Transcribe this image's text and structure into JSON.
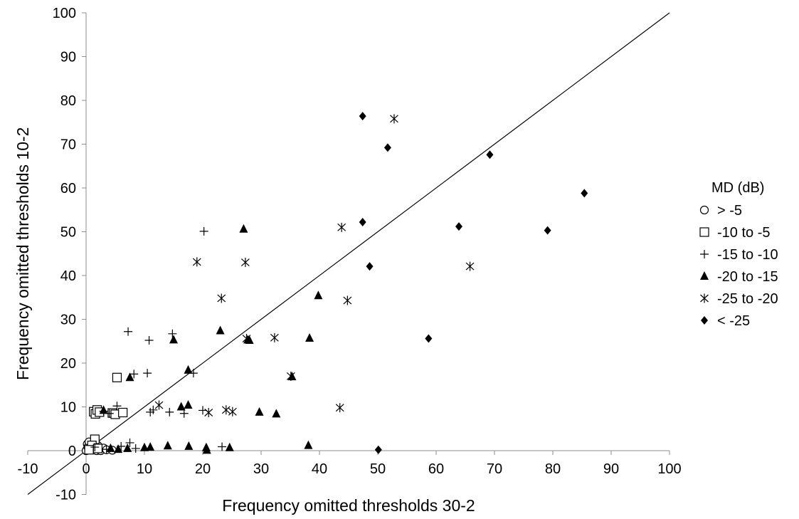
{
  "chart_data": {
    "type": "scatter",
    "title": "",
    "xlabel": "Frequency omitted thresholds 30-2",
    "ylabel": "Frequency omitted thresholds 10-2",
    "xlim": [
      -10,
      100
    ],
    "ylim": [
      -10,
      100
    ],
    "xticks": [
      "-10",
      "0",
      "10",
      "20",
      "30",
      "40",
      "50",
      "60",
      "70",
      "80",
      "90",
      "100"
    ],
    "yticks": [
      "-10",
      "0",
      "10",
      "20",
      "30",
      "40",
      "50",
      "60",
      "70",
      "80",
      "90",
      "100"
    ],
    "grid": false,
    "legend_position": "right",
    "legend_title": "MD (dB)",
    "reference_line": {
      "name": "y = x",
      "from": [
        -10,
        -10
      ],
      "to": [
        100,
        100
      ]
    },
    "series": [
      {
        "name": "> -5",
        "marker": "circle-open",
        "color": "#000000",
        "points": [
          [
            0,
            0
          ],
          [
            0.2,
            1.5
          ],
          [
            0.3,
            0.8
          ],
          [
            0.5,
            2
          ],
          [
            0.6,
            0.3
          ],
          [
            0.8,
            1
          ],
          [
            1,
            0.2
          ],
          [
            1.2,
            1.6
          ],
          [
            1.5,
            0.5
          ],
          [
            1.8,
            0
          ],
          [
            2,
            1.2
          ],
          [
            2.2,
            0.4
          ],
          [
            2.5,
            0
          ],
          [
            3,
            0.6
          ],
          [
            3.5,
            0.2
          ],
          [
            4.5,
            0.1
          ]
        ]
      },
      {
        "name": "-10 to -5",
        "marker": "square-open",
        "color": "#000000",
        "points": [
          [
            1.3,
            8.9
          ],
          [
            1.6,
            8.4
          ],
          [
            1.9,
            9.3
          ],
          [
            2.3,
            8.8
          ],
          [
            4.5,
            8.6
          ],
          [
            5.0,
            8.3
          ],
          [
            6.3,
            8.7
          ],
          [
            5.3,
            16.7
          ],
          [
            1.5,
            2.6
          ],
          [
            1,
            1.2
          ],
          [
            2,
            0.5
          ],
          [
            0.5,
            0.2
          ]
        ]
      },
      {
        "name": "-15 to -10",
        "marker": "plus",
        "color": "#000000",
        "points": [
          [
            20.2,
            50.1
          ],
          [
            7.2,
            27.2
          ],
          [
            14.8,
            26.7
          ],
          [
            10.8,
            25.2
          ],
          [
            8.2,
            17.5
          ],
          [
            10.5,
            17.7
          ],
          [
            18.4,
            17.7
          ],
          [
            5.3,
            10.2
          ],
          [
            11,
            8.8
          ],
          [
            11.5,
            9.3
          ],
          [
            14.3,
            8.8
          ],
          [
            16.8,
            8.5
          ],
          [
            20,
            9.2
          ],
          [
            7.5,
            1.8
          ],
          [
            6,
            1
          ],
          [
            8.5,
            0.5
          ],
          [
            23.3,
            0.9
          ],
          [
            3,
            9
          ],
          [
            4,
            8.5
          ],
          [
            1.5,
            0.8
          ],
          [
            3.5,
            0.3
          ]
        ]
      },
      {
        "name": "-20 to -15",
        "marker": "triangle",
        "color": "#000000",
        "points": [
          [
            27,
            50.6
          ],
          [
            39.8,
            35.4
          ],
          [
            23,
            27.4
          ],
          [
            15,
            25.3
          ],
          [
            27.7,
            25.3
          ],
          [
            28,
            25.2
          ],
          [
            38.3,
            25.7
          ],
          [
            7.5,
            16.7
          ],
          [
            17.5,
            18.4
          ],
          [
            35.3,
            16.9
          ],
          [
            16.3,
            10
          ],
          [
            17.5,
            10.4
          ],
          [
            29.7,
            8.8
          ],
          [
            32.6,
            8.4
          ],
          [
            3,
            9.2
          ],
          [
            4.2,
            0.5
          ],
          [
            7.1,
            0.5
          ],
          [
            10,
            0.7
          ],
          [
            11,
            0.8
          ],
          [
            14,
            1.1
          ],
          [
            17.6,
            1
          ],
          [
            20.6,
            0.7
          ],
          [
            20.7,
            0.1
          ],
          [
            24.6,
            0.7
          ],
          [
            38.1,
            1.2
          ],
          [
            5.5,
            0.3
          ]
        ]
      },
      {
        "name": "-25 to -20",
        "marker": "asterisk",
        "color": "#000000",
        "points": [
          [
            52.8,
            75.8
          ],
          [
            43.8,
            51
          ],
          [
            19,
            43.1
          ],
          [
            27.3,
            43
          ],
          [
            65.8,
            42.1
          ],
          [
            23.2,
            34.8
          ],
          [
            44.8,
            34.3
          ],
          [
            27.5,
            25.6
          ],
          [
            32.3,
            25.8
          ],
          [
            35.1,
            17
          ],
          [
            12.5,
            10.4
          ],
          [
            21,
            8.7
          ],
          [
            24,
            9.3
          ],
          [
            25.1,
            8.9
          ],
          [
            43.5,
            9.8
          ]
        ]
      },
      {
        "name": "< -25",
        "marker": "diamond",
        "color": "#000000",
        "points": [
          [
            47.4,
            76.4
          ],
          [
            51.7,
            69.2
          ],
          [
            69.2,
            67.6
          ],
          [
            85.4,
            58.8
          ],
          [
            47.4,
            52.2
          ],
          [
            63.9,
            51.2
          ],
          [
            79.1,
            50.3
          ],
          [
            48.6,
            42.1
          ],
          [
            58.7,
            25.6
          ],
          [
            50.1,
            0.2
          ]
        ]
      }
    ]
  }
}
